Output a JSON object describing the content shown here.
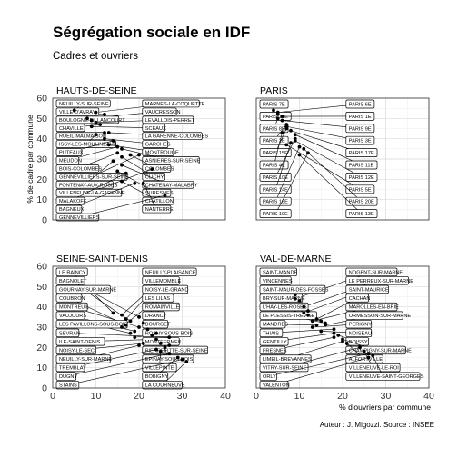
{
  "title": "Ségrégation sociale en IDF",
  "subtitle": "Cadres et ouvriers",
  "caption": "Auteur : J. Migozzi. Source : INSEE",
  "colors": {
    "grid": "#d9d9d9",
    "border": "#333333",
    "point": "#000000",
    "label_fill": "#ffffff"
  },
  "chart_data": {
    "type": "scatter",
    "xlabel": "% d'ouvriers par commune",
    "ylabel": "% de cadre par commune",
    "xlim": [
      0,
      40
    ],
    "ylim": [
      0,
      60
    ],
    "xticks": [
      0,
      10,
      20,
      30,
      40
    ],
    "yticks": [
      0,
      10,
      20,
      30,
      40,
      50,
      60
    ],
    "grid": true,
    "facets": [
      {
        "name": "HAUTS-DE-SEINE",
        "points": [
          {
            "label": "NEUILLY-SUR-SEINE",
            "x": 5,
            "y": 54
          },
          {
            "label": "MARNES-LA-COQUETTE",
            "x": 10,
            "y": 53
          },
          {
            "label": "VILLE-D'AVRAY",
            "x": 12,
            "y": 52
          },
          {
            "label": "VAUCRESSON",
            "x": 8,
            "y": 50
          },
          {
            "label": "BOULOGNE-BILLANCOURT",
            "x": 9,
            "y": 49
          },
          {
            "label": "LEVALLOIS-PERRET",
            "x": 10,
            "y": 48
          },
          {
            "label": "CHAVILLE",
            "x": 11,
            "y": 47
          },
          {
            "label": "SCEAUX",
            "x": 9,
            "y": 46
          },
          {
            "label": "RUEIL-MALMAISON",
            "x": 12,
            "y": 43
          },
          {
            "label": "LA GARENNE-COLOMBES",
            "x": 13,
            "y": 43
          },
          {
            "label": "ISSY-LES-MOULINEAUX",
            "x": 10,
            "y": 42
          },
          {
            "label": "GARCHES",
            "x": 12,
            "y": 40
          },
          {
            "label": "PUTEAUX",
            "x": 14,
            "y": 39
          },
          {
            "label": "MONTROUGE",
            "x": 13,
            "y": 37
          },
          {
            "label": "ASNIERES-SUR-SEINE",
            "x": 16,
            "y": 35
          },
          {
            "label": "MEUDON",
            "x": 15,
            "y": 36
          },
          {
            "label": "COLOMBES",
            "x": 18,
            "y": 32
          },
          {
            "label": "BOIS-COLOMBES",
            "x": 15,
            "y": 33
          },
          {
            "label": "GENNEVILLIERS-SUR-SEINE",
            "x": 20,
            "y": 32
          },
          {
            "label": "CLICHY",
            "x": 16,
            "y": 31
          },
          {
            "label": "FONTENAY-AUX-ROSES",
            "x": 14,
            "y": 29
          },
          {
            "label": "CHATENAY-MALABRY",
            "x": 16,
            "y": 27
          },
          {
            "label": "VILLENEUVE-LA-GARENNE",
            "x": 23,
            "y": 25
          },
          {
            "label": "SURESNES",
            "x": 15,
            "y": 24
          },
          {
            "label": "MALAKOFF",
            "x": 17,
            "y": 23
          },
          {
            "label": "CHATILLON",
            "x": 16,
            "y": 19
          },
          {
            "label": "BAGNEUX",
            "x": 19,
            "y": 18
          },
          {
            "label": "NANTERRE",
            "x": 21,
            "y": 18
          },
          {
            "label": "GENNEVILLIERS",
            "x": 26,
            "y": 12
          }
        ]
      },
      {
        "name": "PARIS",
        "points": [
          {
            "label": "PARIS 7E",
            "x": 4,
            "y": 54
          },
          {
            "label": "PARIS 6E",
            "x": 5,
            "y": 53
          },
          {
            "label": "PARIS 16E",
            "x": 5,
            "y": 52
          },
          {
            "label": "PARIS 1E",
            "x": 6,
            "y": 51
          },
          {
            "label": "PARIS 8E",
            "x": 5,
            "y": 50
          },
          {
            "label": "PARIS 9E",
            "x": 6,
            "y": 49
          },
          {
            "label": "PARIS 2E",
            "x": 7,
            "y": 47
          },
          {
            "label": "PARIS 3E",
            "x": 7,
            "y": 46
          },
          {
            "label": "PARIS 15E",
            "x": 7,
            "y": 45
          },
          {
            "label": "PARIS 17E",
            "x": 8,
            "y": 44
          },
          {
            "label": "PARIS 4E",
            "x": 6,
            "y": 43
          },
          {
            "label": "PARIS 11E",
            "x": 9,
            "y": 42
          },
          {
            "label": "PARIS 10E",
            "x": 9,
            "y": 40
          },
          {
            "label": "PARIS 12E",
            "x": 9,
            "y": 39
          },
          {
            "label": "PARIS 14E",
            "x": 8,
            "y": 38
          },
          {
            "label": "PARIS 5E",
            "x": 7,
            "y": 37
          },
          {
            "label": "PARIS 18E",
            "x": 10,
            "y": 36
          },
          {
            "label": "PARIS 20E",
            "x": 11,
            "y": 35
          },
          {
            "label": "PARIS 19E",
            "x": 12,
            "y": 33
          },
          {
            "label": "PARIS 13E",
            "x": 10,
            "y": 32
          }
        ]
      },
      {
        "name": "SEINE-SAINT-DENIS",
        "points": [
          {
            "label": "NEUILLY-PLAISANCE",
            "x": 16,
            "y": 36
          },
          {
            "label": "BAGNOLET",
            "x": 20,
            "y": 35
          },
          {
            "label": "VILLEMOMBLE",
            "x": 17,
            "y": 34
          },
          {
            "label": "LE RAINCY",
            "x": 14,
            "y": 37
          },
          {
            "label": "GOURNAY-SUR-MARNE",
            "x": 18,
            "y": 33
          },
          {
            "label": "NOISY-LE-GRAND",
            "x": 21,
            "y": 32
          },
          {
            "label": "COUBRON",
            "x": 17,
            "y": 31
          },
          {
            "label": "LES LILAS",
            "x": 16,
            "y": 30
          },
          {
            "label": "MONTREUIL",
            "x": 20,
            "y": 30
          },
          {
            "label": "ROMAINVILLE",
            "x": 22,
            "y": 29
          },
          {
            "label": "VAUJOURS",
            "x": 19,
            "y": 28
          },
          {
            "label": "DRANCY",
            "x": 24,
            "y": 27
          },
          {
            "label": "LES PAVILLONS-SOUS-BOIS",
            "x": 18,
            "y": 27
          },
          {
            "label": "BOURGET",
            "x": 23,
            "y": 26
          },
          {
            "label": "SEVRAN",
            "x": 27,
            "y": 25
          },
          {
            "label": "ROSNY-SOUS-BOIS",
            "x": 19,
            "y": 25
          },
          {
            "label": "ILE-SAINT-DENIS",
            "x": 24,
            "y": 24
          },
          {
            "label": "MONTFERMEIL",
            "x": 25,
            "y": 22
          },
          {
            "label": "PIERREFITTE-SUR-SEINE",
            "x": 27,
            "y": 21
          },
          {
            "label": "NOISY-LE-SEC",
            "x": 21,
            "y": 22
          },
          {
            "label": "NEUILLY-SUR-MARNE",
            "x": 20,
            "y": 21
          },
          {
            "label": "EPINAY-SOUS-BOIS",
            "x": 26,
            "y": 20
          },
          {
            "label": "TREMBLAY",
            "x": 24,
            "y": 19
          },
          {
            "label": "VILLEPINTE",
            "x": 25,
            "y": 18
          },
          {
            "label": "DUGNY",
            "x": 27,
            "y": 17
          },
          {
            "label": "BOBIGNY",
            "x": 29,
            "y": 15
          },
          {
            "label": "STAINS",
            "x": 30,
            "y": 14
          },
          {
            "label": "LA COURNEUVE",
            "x": 31,
            "y": 13
          }
        ]
      },
      {
        "name": "VAL-DE-MARNE",
        "points": [
          {
            "label": "NOGENT-SUR-MARNE",
            "x": 9,
            "y": 44
          },
          {
            "label": "SAINT-MANDE",
            "x": 9,
            "y": 46
          },
          {
            "label": "L'HAY-LES-ROSES",
            "x": 15,
            "y": 33
          },
          {
            "label": "VINCENNES",
            "x": 10,
            "y": 43
          },
          {
            "label": "LE PERREUX-SUR-MARNE",
            "x": 11,
            "y": 40
          },
          {
            "label": "THIAIS",
            "x": 18,
            "y": 29
          },
          {
            "label": "SAINT-MAUR-DES-FOSSES",
            "x": 12,
            "y": 38
          },
          {
            "label": "ORMESSON-SUR-MARNE",
            "x": 16,
            "y": 31
          },
          {
            "label": "SAINT-MAURICE",
            "x": 11,
            "y": 37
          },
          {
            "label": "CACHAN",
            "x": 14,
            "y": 34
          },
          {
            "label": "LE PLESSIS-TREVISE",
            "x": 16,
            "y": 32
          },
          {
            "label": "BRY-SUR-MARNE",
            "x": 12,
            "y": 36
          },
          {
            "label": "VITRY-SUR-SEINE",
            "x": 24,
            "y": 20
          },
          {
            "label": "MAROLLES-EN-BRIE",
            "x": 13,
            "y": 33
          },
          {
            "label": "GENTILLY",
            "x": 18,
            "y": 27
          },
          {
            "label": "CHAMPIGNY-SUR-MARNE",
            "x": 20,
            "y": 24
          },
          {
            "label": "BOISSY",
            "x": 19,
            "y": 26
          },
          {
            "label": "VILLENEUVE-LE-ROI",
            "x": 25,
            "y": 18
          },
          {
            "label": "MANDRES",
            "x": 14,
            "y": 31
          },
          {
            "label": "PERIGNY",
            "x": 13,
            "y": 30
          },
          {
            "label": "ALFORTVILLE",
            "x": 21,
            "y": 22
          },
          {
            "label": "ORLY",
            "x": 26,
            "y": 17
          },
          {
            "label": "NOISEAU",
            "x": 15,
            "y": 28
          },
          {
            "label": "FRESNES",
            "x": 18,
            "y": 25
          },
          {
            "label": "LIMEIL-BREVANNES",
            "x": 20,
            "y": 23
          },
          {
            "label": "VILLENEUVE-SAINT-GEORGES",
            "x": 27,
            "y": 16
          },
          {
            "label": "VALENTON",
            "x": 26,
            "y": 15
          }
        ]
      }
    ]
  }
}
